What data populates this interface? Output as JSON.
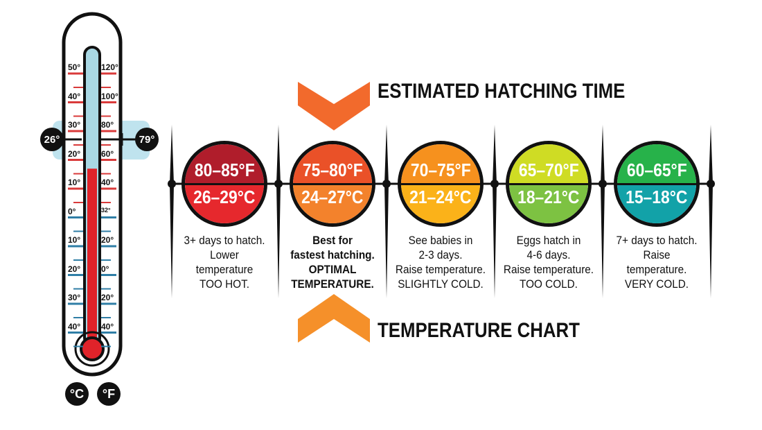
{
  "headings": {
    "top": "ESTIMATED HATCHING TIME",
    "bottom": "TEMPERATURE CHART"
  },
  "colors": {
    "ink": "#111111",
    "arrow_top": "#f26a2c",
    "arrow_bottom": "#f5902a",
    "thermo_tube": "#a9d8e4",
    "mercury": "#e0232a",
    "celsius_tick": "#d93a3a",
    "fahrenheit_tick": "#2f7ea6",
    "highlight_band": "#bfe3ee"
  },
  "zones": [
    {
      "fahrenheit": "80–85°F",
      "celsius": "26–29°C",
      "top_color": "#b01d2b",
      "bottom_color": "#e6282d",
      "lines": [
        "3+ days to hatch.",
        "Lower",
        "temperature",
        "TOO HOT."
      ],
      "bold": false
    },
    {
      "fahrenheit": "75–80°F",
      "celsius": "24–27°C",
      "top_color": "#ea5128",
      "bottom_color": "#f3822c",
      "lines": [
        "Best for",
        "fastest hatching.",
        "OPTIMAL",
        "TEMPERATURE."
      ],
      "bold": true
    },
    {
      "fahrenheit": "70–75°F",
      "celsius": "21–24°C",
      "top_color": "#f6911e",
      "bottom_color": "#fbb219",
      "lines": [
        "See babies in",
        "2-3 days.",
        "Raise temperature.",
        "SLIGHTLY COLD."
      ],
      "bold": false
    },
    {
      "fahrenheit": "65–70°F",
      "celsius": "18–21°C",
      "top_color": "#cfdc24",
      "bottom_color": "#7dc242",
      "lines": [
        "Eggs hatch in",
        "4-6 days.",
        "Raise temperature.",
        "TOO COLD."
      ],
      "bold": false
    },
    {
      "fahrenheit": "60–65°F",
      "celsius": "15–18°C",
      "top_color": "#27b24a",
      "bottom_color": "#12a2a8",
      "lines": [
        "7+ days to hatch.",
        "Raise",
        "temperature.",
        "VERY COLD."
      ],
      "bold": false
    }
  ],
  "thermometer": {
    "celsius_labels": [
      "50°",
      "40°",
      "30°",
      "20°",
      "10°",
      "0°",
      "10°",
      "20°",
      "30°",
      "40°"
    ],
    "fahrenheit_labels": [
      "120°",
      "100°",
      "80°",
      "60°",
      "40°",
      "32°",
      "20°",
      "0°",
      "20°",
      "40°"
    ],
    "reading_celsius": "26°",
    "reading_fahrenheit": "79°",
    "unit_celsius": "°C",
    "unit_fahrenheit": "°F",
    "fill_fraction": 0.6
  }
}
